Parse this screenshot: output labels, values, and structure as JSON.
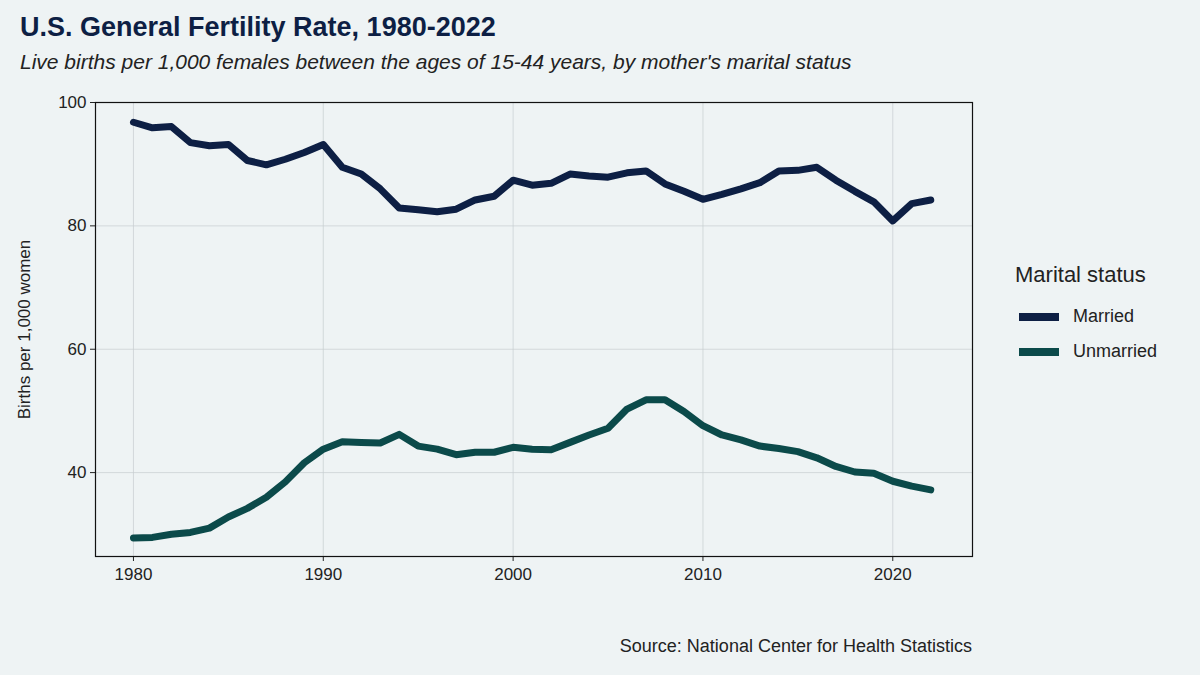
{
  "chart_data": {
    "type": "line",
    "title": "U.S. General Fertility Rate, 1980-2022",
    "subtitle": "Live births per 1,000 females between the ages of 15-44 years, by mother's marital status",
    "y_label": "Births per 1,000 women",
    "source": "Source: National Center for Health Statistics",
    "legend_title": "Marital status",
    "legend": "right",
    "grid": true,
    "x": [
      1980,
      1981,
      1982,
      1983,
      1984,
      1985,
      1986,
      1987,
      1988,
      1989,
      1990,
      1991,
      1992,
      1993,
      1994,
      1995,
      1996,
      1997,
      1998,
      1999,
      2000,
      2001,
      2002,
      2003,
      2004,
      2005,
      2006,
      2007,
      2008,
      2009,
      2010,
      2011,
      2012,
      2013,
      2014,
      2015,
      2016,
      2017,
      2018,
      2019,
      2020,
      2021,
      2022
    ],
    "series": [
      {
        "name": "Married",
        "color": "#0d1f44",
        "values": [
          96.8,
          95.9,
          96.1,
          93.5,
          93.0,
          93.2,
          90.6,
          89.9,
          90.8,
          91.9,
          93.2,
          89.5,
          88.4,
          86.0,
          82.9,
          82.6,
          82.3,
          82.7,
          84.2,
          84.8,
          87.4,
          86.6,
          86.9,
          88.4,
          88.1,
          87.9,
          88.6,
          88.9,
          86.8,
          85.6,
          84.3,
          85.1,
          86.0,
          87.0,
          88.9,
          89.0,
          89.5,
          87.4,
          85.6,
          83.9,
          80.8,
          83.6,
          84.2
        ]
      },
      {
        "name": "Unmarried",
        "color": "#0b4a4a",
        "values": [
          29.4,
          29.5,
          30.0,
          30.3,
          31.0,
          32.8,
          34.2,
          36.0,
          38.5,
          41.6,
          43.8,
          45.0,
          44.9,
          44.8,
          46.2,
          44.3,
          43.8,
          42.9,
          43.3,
          43.3,
          44.1,
          43.8,
          43.7,
          44.9,
          46.1,
          47.2,
          50.3,
          51.8,
          51.8,
          49.9,
          47.6,
          46.1,
          45.3,
          44.3,
          43.9,
          43.4,
          42.4,
          41.0,
          40.1,
          39.9,
          38.6,
          37.8,
          37.2
        ]
      }
    ],
    "xlim": [
      1978,
      2024.2
    ],
    "xticks": [
      1980,
      1990,
      2000,
      2010,
      2020
    ],
    "ylim": [
      26.4,
      100
    ],
    "yticks": [
      40,
      60,
      80,
      100
    ]
  }
}
